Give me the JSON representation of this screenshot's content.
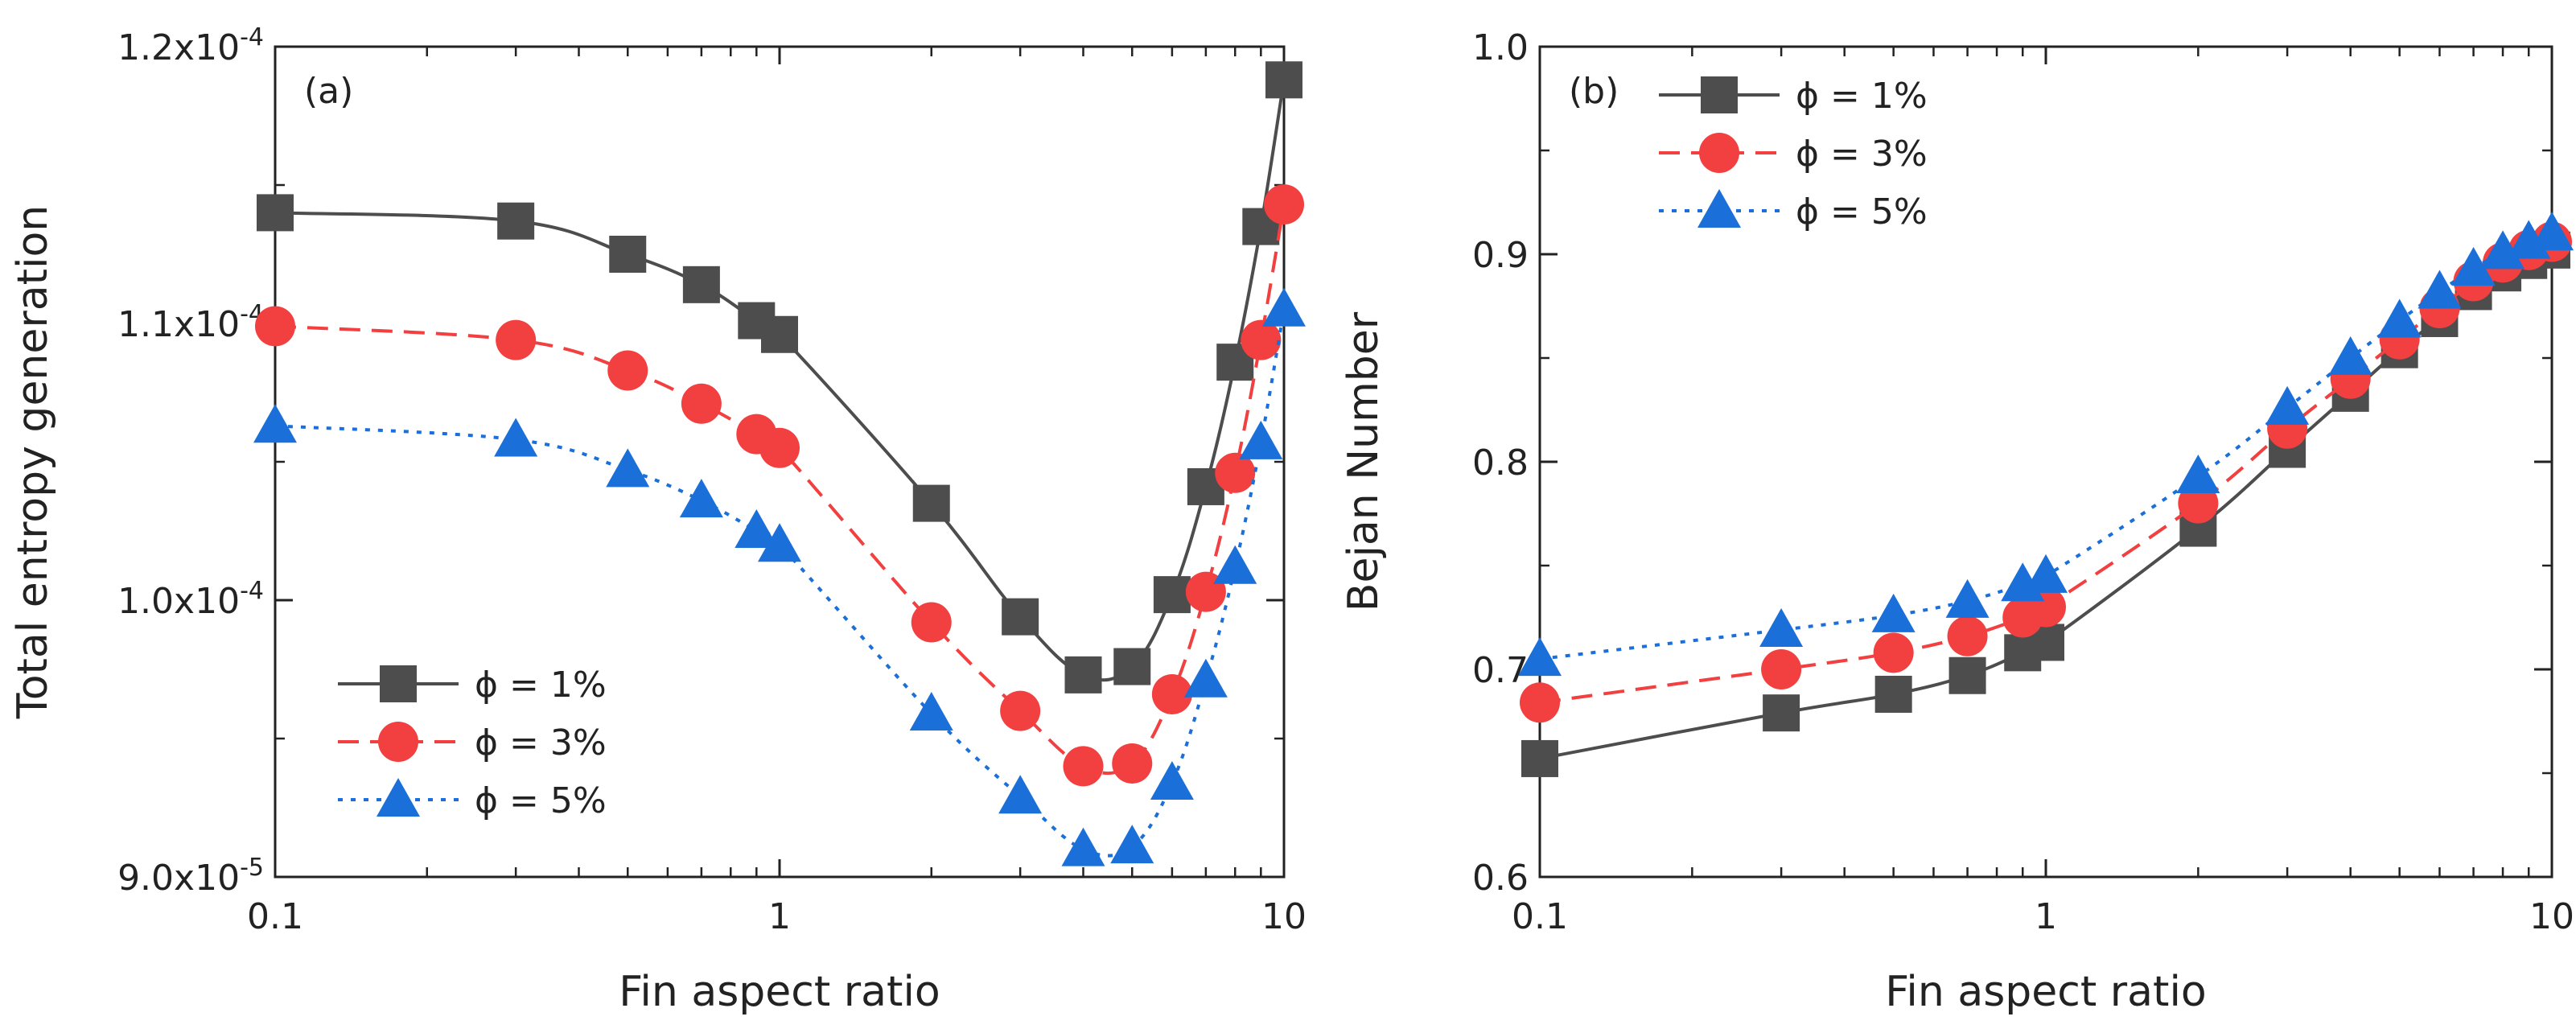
{
  "chart_data": [
    {
      "type": "line",
      "panel_label": "(a)",
      "xlabel": "Fin aspect ratio",
      "ylabel": "Total entropy generation",
      "xscale": "log",
      "xlim": [
        0.1,
        10
      ],
      "ylim": [
        9e-05,
        0.00012
      ],
      "xticks": [
        {
          "value": 0.1,
          "label": "0.1"
        },
        {
          "value": 1,
          "label": "1"
        },
        {
          "value": 10,
          "label": "10"
        }
      ],
      "yticks": [
        {
          "value": 9e-05,
          "label": "9.0x10⁻⁵"
        },
        {
          "value": 0.0001,
          "label": "1.0x10⁻⁴"
        },
        {
          "value": 0.00011,
          "label": "1.1x10⁻⁴"
        },
        {
          "value": 0.00012,
          "label": "1.2x10⁻⁴"
        }
      ],
      "legend_position": "bottom-left",
      "series": [
        {
          "name": "ϕ = 1%",
          "color": "#4d4d4d",
          "marker": "square",
          "dash": "solid",
          "x": [
            0.1,
            0.3,
            0.5,
            0.7,
            0.9,
            1,
            2,
            3,
            4,
            5,
            6,
            7,
            8,
            9,
            10
          ],
          "y": [
            0.000114,
            0.0001137,
            0.0001125,
            0.0001114,
            0.0001101,
            0.0001096,
            0.0001035,
            9.94e-05,
            9.73e-05,
            9.76e-05,
            0.0001002,
            0.0001041,
            0.0001086,
            0.0001135,
            0.0001188
          ]
        },
        {
          "name": "ϕ = 3%",
          "color": "#f23f3f",
          "marker": "circle",
          "dash": "dashed",
          "x": [
            0.1,
            0.3,
            0.5,
            0.7,
            0.9,
            1,
            2,
            3,
            4,
            5,
            6,
            7,
            8,
            9,
            10
          ],
          "y": [
            0.0001099,
            0.0001094,
            0.0001083,
            0.0001071,
            0.000106,
            0.0001055,
            9.92e-05,
            9.6e-05,
            9.4e-05,
            9.41e-05,
            9.66e-05,
            0.0001003,
            0.0001046,
            0.0001094,
            0.0001143
          ]
        },
        {
          "name": "ϕ = 5%",
          "color": "#1a6fd9",
          "marker": "triangle",
          "dash": "dotted",
          "x": [
            0.1,
            0.3,
            0.5,
            0.7,
            0.9,
            1,
            2,
            3,
            4,
            5,
            6,
            7,
            8,
            9,
            10
          ],
          "y": [
            0.0001063,
            0.0001058,
            0.0001047,
            0.0001036,
            0.0001025,
            0.000102,
            9.59e-05,
            9.29e-05,
            9.1e-05,
            9.11e-05,
            9.34e-05,
            9.71e-05,
            0.0001012,
            0.0001057,
            0.0001105
          ]
        }
      ]
    },
    {
      "type": "line",
      "panel_label": "(b)",
      "xlabel": "Fin aspect ratio",
      "ylabel": "Bejan Number",
      "xscale": "log",
      "xlim": [
        0.1,
        10
      ],
      "ylim": [
        0.6,
        1.0
      ],
      "xticks": [
        {
          "value": 0.1,
          "label": "0.1"
        },
        {
          "value": 1,
          "label": "1"
        },
        {
          "value": 10,
          "label": "10"
        }
      ],
      "yticks": [
        {
          "value": 0.6,
          "label": "0.6"
        },
        {
          "value": 0.7,
          "label": "0.7"
        },
        {
          "value": 0.8,
          "label": "0.8"
        },
        {
          "value": 0.9,
          "label": "0.9"
        },
        {
          "value": 1.0,
          "label": "1.0"
        }
      ],
      "legend_position": "top-left",
      "series": [
        {
          "name": "ϕ = 1%",
          "color": "#4d4d4d",
          "marker": "square",
          "dash": "solid",
          "x": [
            0.1,
            0.3,
            0.5,
            0.7,
            0.9,
            1,
            2,
            3,
            4,
            5,
            6,
            7,
            8,
            9,
            10
          ],
          "y": [
            0.657,
            0.679,
            0.688,
            0.697,
            0.708,
            0.713,
            0.768,
            0.806,
            0.833,
            0.854,
            0.869,
            0.882,
            0.891,
            0.897,
            0.902
          ]
        },
        {
          "name": "ϕ = 3%",
          "color": "#f23f3f",
          "marker": "circle",
          "dash": "dashed",
          "x": [
            0.1,
            0.3,
            0.5,
            0.7,
            0.9,
            1,
            2,
            3,
            4,
            5,
            6,
            7,
            8,
            9,
            10
          ],
          "y": [
            0.684,
            0.7,
            0.708,
            0.716,
            0.725,
            0.73,
            0.78,
            0.816,
            0.84,
            0.859,
            0.874,
            0.887,
            0.896,
            0.902,
            0.906
          ]
        },
        {
          "name": "ϕ = 5%",
          "color": "#1a6fd9",
          "marker": "triangle",
          "dash": "dotted",
          "x": [
            0.1,
            0.3,
            0.5,
            0.7,
            0.9,
            1,
            2,
            3,
            4,
            5,
            6,
            7,
            8,
            9,
            10
          ],
          "y": [
            0.705,
            0.719,
            0.726,
            0.733,
            0.741,
            0.745,
            0.793,
            0.826,
            0.85,
            0.868,
            0.882,
            0.893,
            0.901,
            0.906,
            0.91
          ]
        }
      ]
    }
  ]
}
